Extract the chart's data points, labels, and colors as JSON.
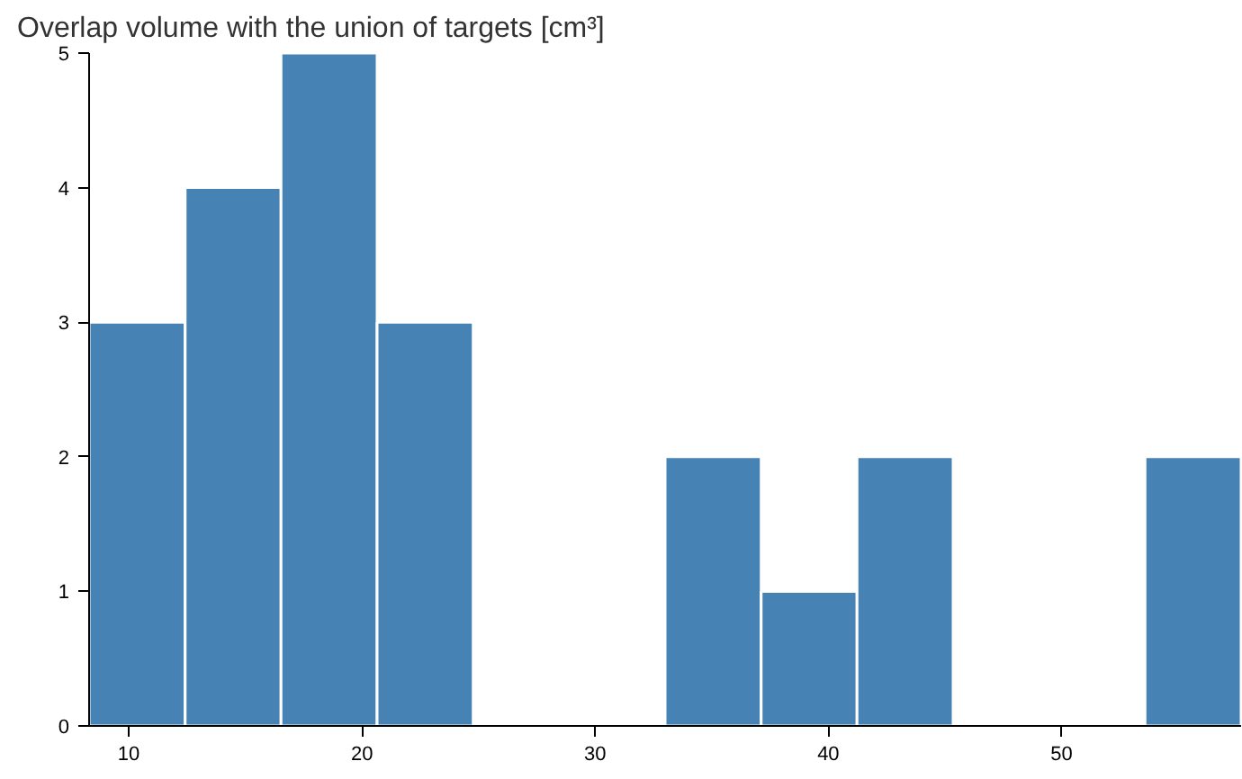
{
  "chart_data": {
    "type": "histogram",
    "title": "Overlap volume with the union of targets [cm³]",
    "bins": [
      8.3,
      12.42,
      16.53,
      20.65,
      24.77,
      28.88,
      33.0,
      37.12,
      41.23,
      45.35,
      49.47,
      53.58,
      57.7
    ],
    "values": [
      3,
      4,
      5,
      3,
      0,
      0,
      2,
      1,
      2,
      0,
      0,
      2
    ],
    "color": "#4682b4",
    "xlim": [
      8.3,
      57.7
    ],
    "xticks": [
      10,
      20,
      30,
      40,
      50
    ],
    "ylim": [
      0,
      5
    ],
    "yticks": [
      0,
      1,
      2,
      3,
      4,
      5
    ],
    "grid": false
  }
}
